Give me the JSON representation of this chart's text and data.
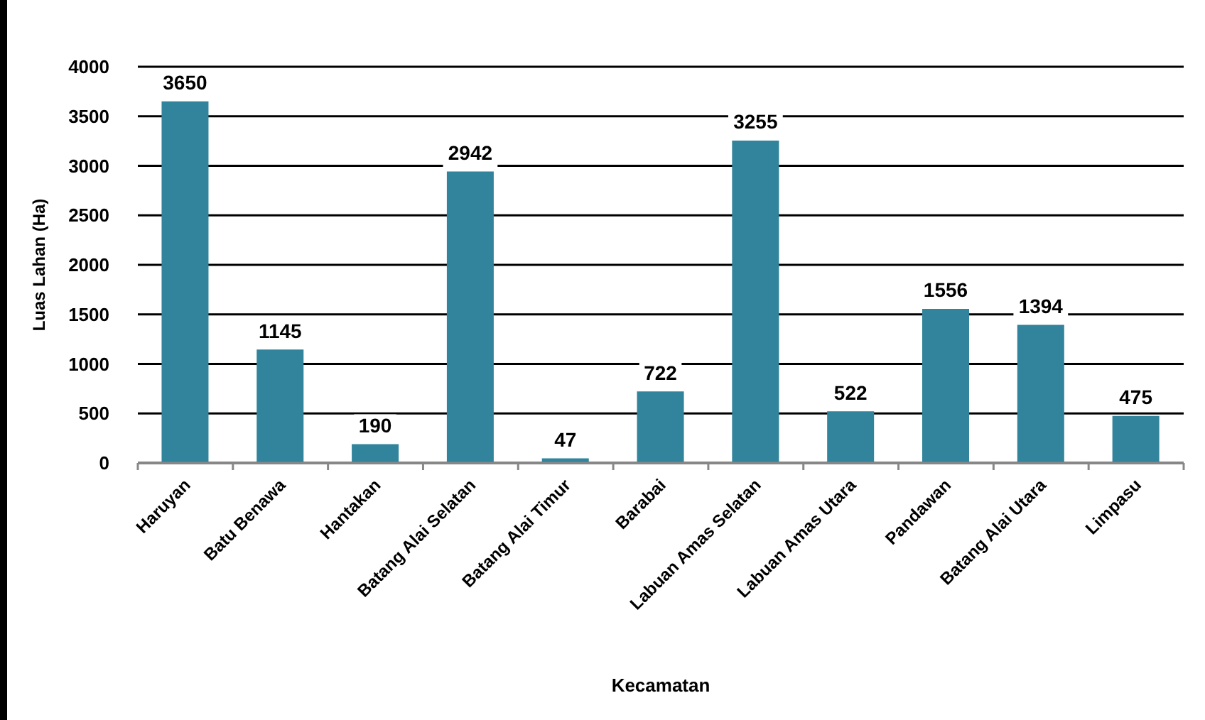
{
  "chart_data": {
    "type": "bar",
    "xlabel": "Kecamatan",
    "ylabel": "Luas Lahan (Ha)",
    "categories": [
      "Haruyan",
      "Batu Benawa",
      "Hantakan",
      "Batang Alai Selatan",
      "Batang Alai Timur",
      "Barabai",
      "Labuan Amas Selatan",
      "Labuan Amas Utara",
      "Pandawan",
      "Batang Alai Utara",
      "Limpasu"
    ],
    "values": [
      3650,
      1145,
      190,
      2942,
      47,
      722,
      3255,
      522,
      1556,
      1394,
      475
    ],
    "color": "#31849b",
    "ylim": [
      0,
      4000
    ],
    "yticks": [
      0,
      500,
      1000,
      1500,
      2000,
      2500,
      3000,
      3500,
      4000
    ],
    "grid": "y",
    "data_labels": true
  }
}
